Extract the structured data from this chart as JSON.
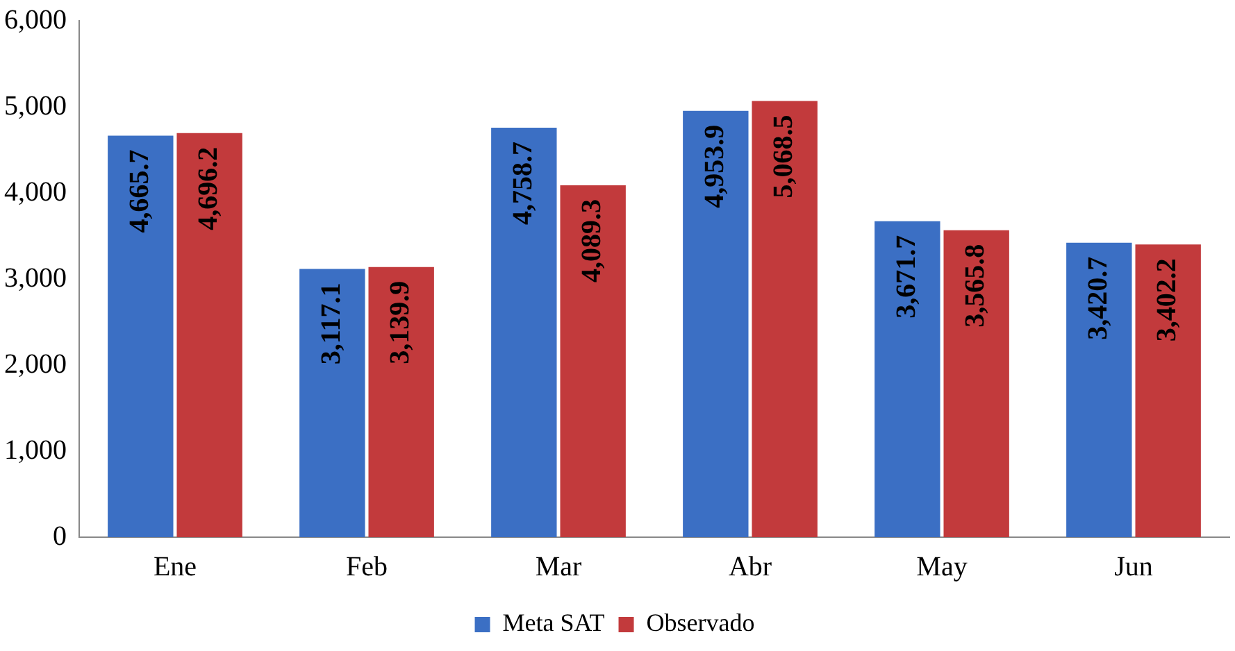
{
  "chart_data": {
    "type": "bar",
    "categories": [
      "Ene",
      "Feb",
      "Mar",
      "Abr",
      "May",
      "Jun"
    ],
    "series": [
      {
        "name": "Meta SAT",
        "color": "#3b6fc4",
        "values": [
          4665.7,
          3117.1,
          4758.7,
          4953.9,
          3671.7,
          3420.7
        ],
        "value_labels": [
          "4,665.7",
          "3,117.1",
          "4,758.7",
          "4,953.9",
          "3,671.7",
          "3,420.7"
        ]
      },
      {
        "name": "Observado",
        "color": "#c23a3c",
        "values": [
          4696.2,
          3139.9,
          4089.3,
          5068.5,
          3565.8,
          3402.2
        ],
        "value_labels": [
          "4,696.2",
          "3,139.9",
          "4,089.3",
          "5,068.5",
          "3,565.8",
          "3,402.2"
        ]
      }
    ],
    "ylim": [
      0,
      6000
    ],
    "yticks": [
      {
        "value": 0,
        "label": "0"
      },
      {
        "value": 1000,
        "label": "1,000"
      },
      {
        "value": 2000,
        "label": "2,000"
      },
      {
        "value": 3000,
        "label": "3,000"
      },
      {
        "value": 4000,
        "label": "4,000"
      },
      {
        "value": 5000,
        "label": "5,000"
      },
      {
        "value": 6000,
        "label": "6,000"
      }
    ],
    "grid": false,
    "legend": "bottom"
  }
}
